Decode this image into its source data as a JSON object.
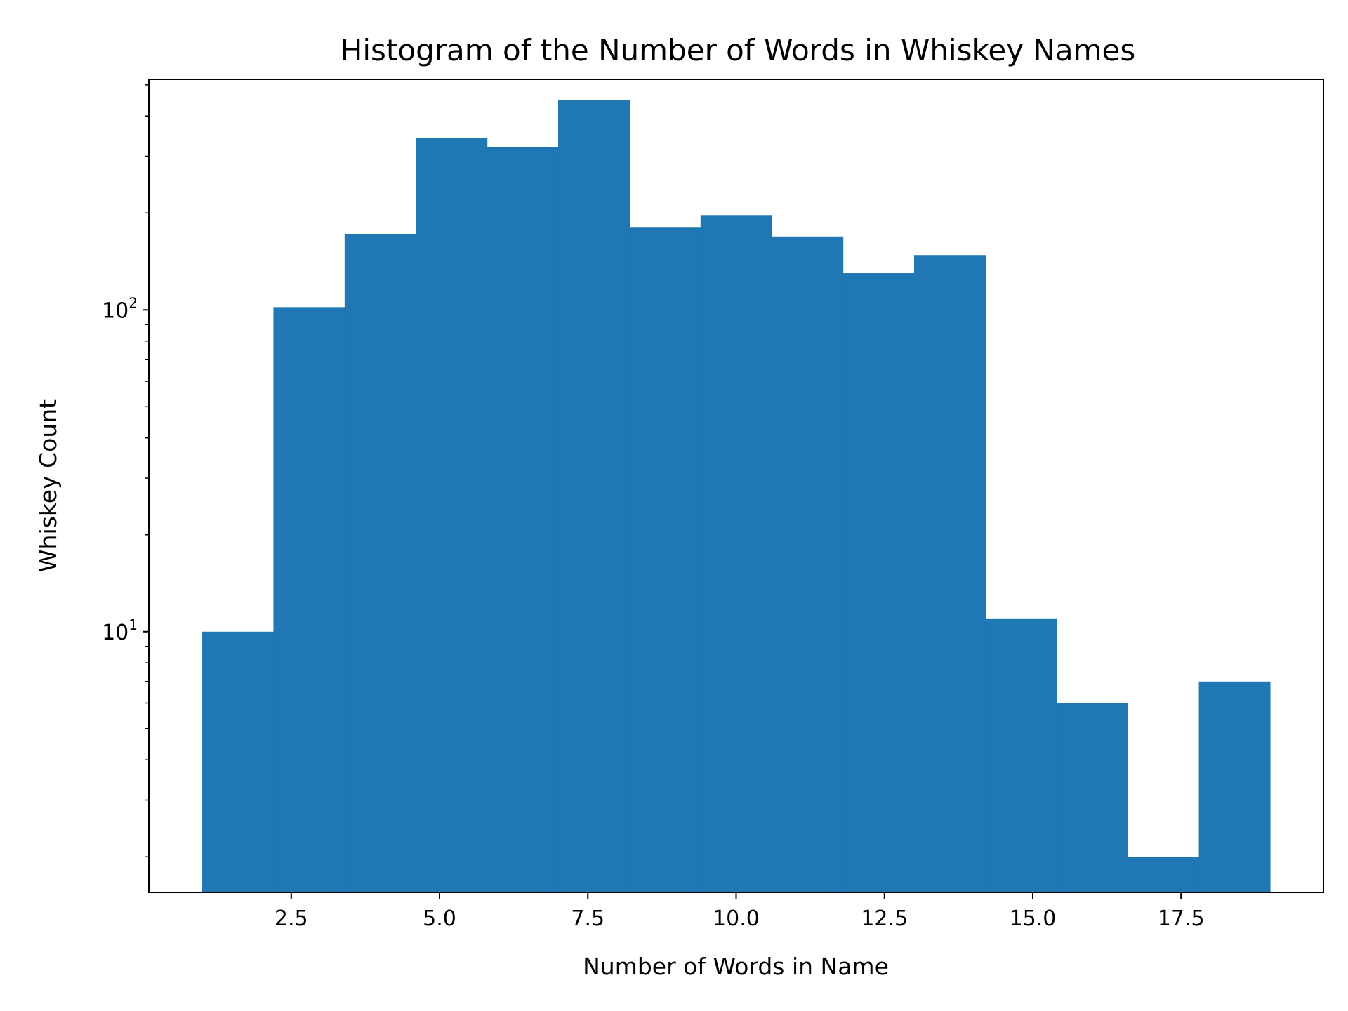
{
  "chart_data": {
    "type": "bar",
    "title": "Histogram of the Number of Words in Whiskey Names",
    "xlabel": "Number of Words in Name",
    "ylabel": "Whiskey Count",
    "yscale": "log",
    "xlim": [
      0.1,
      19.9
    ],
    "ylim": [
      1.55,
      520
    ],
    "bin_edges": [
      1.0,
      2.2,
      3.4,
      4.6,
      5.8,
      7.0,
      8.2,
      9.4,
      10.6,
      11.8,
      13.0,
      14.2,
      15.4,
      16.6,
      17.8,
      19.0
    ],
    "values": [
      10,
      102,
      172,
      342,
      321,
      448,
      180,
      197,
      169,
      130,
      148,
      11,
      6,
      2,
      7
    ],
    "x_ticks": [
      {
        "value": 2.5,
        "label": "2.5"
      },
      {
        "value": 5.0,
        "label": "5.0"
      },
      {
        "value": 7.5,
        "label": "7.5"
      },
      {
        "value": 10.0,
        "label": "10.0"
      },
      {
        "value": 12.5,
        "label": "12.5"
      },
      {
        "value": 15.0,
        "label": "15.0"
      },
      {
        "value": 17.5,
        "label": "17.5"
      }
    ],
    "y_major_ticks": [
      {
        "value": 10,
        "base": "10",
        "exponent": "1"
      },
      {
        "value": 100,
        "base": "10",
        "exponent": "2"
      }
    ],
    "y_minor_ticks": [
      2,
      3,
      4,
      5,
      6,
      7,
      8,
      9,
      20,
      30,
      40,
      50,
      60,
      70,
      80,
      90,
      200,
      300,
      400,
      500
    ],
    "bar_color": "#1f77b4",
    "grid": false,
    "legend": "none"
  }
}
